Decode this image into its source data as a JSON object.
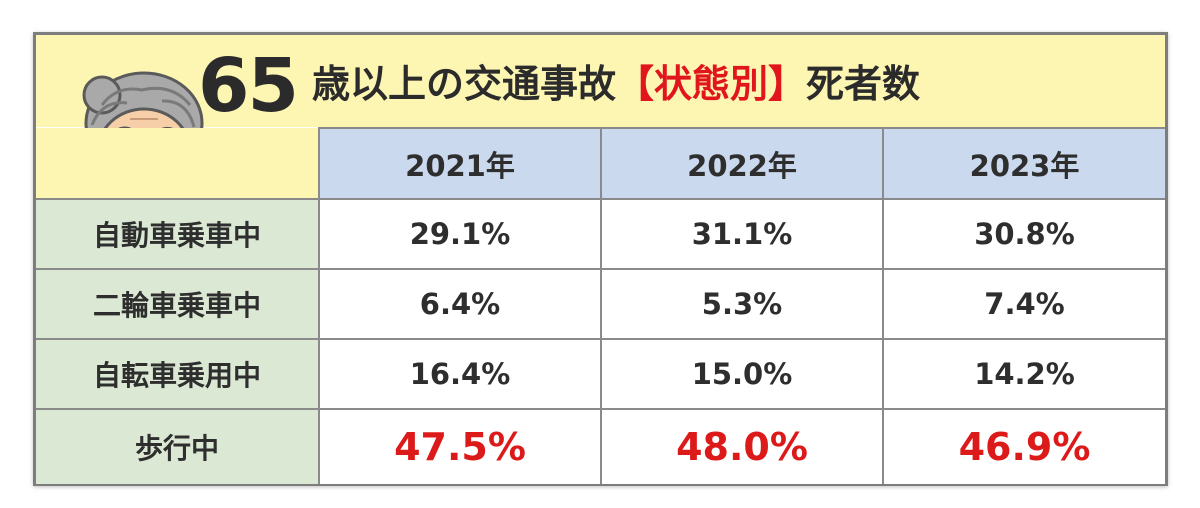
{
  "title": {
    "number": "65",
    "text_before": "歳以上の交通事故",
    "text_accent": "【状態別】",
    "text_after": "死者数"
  },
  "colors": {
    "title_band": "#fdf6b3",
    "year_header": "#cbd9ee",
    "row_label": "#dbe8d4",
    "highlight": "#dc1a1a"
  },
  "avatar_icon": "elderly-woman-icon",
  "chart_data": {
    "type": "table",
    "columns": [
      "2021年",
      "2022年",
      "2023年"
    ],
    "rows": [
      {
        "label": "自動車乗車中",
        "values": [
          "29.1%",
          "31.1%",
          "30.8%"
        ]
      },
      {
        "label": "二輪車乗車中",
        "values": [
          "6.4%",
          "5.3%",
          "7.4%"
        ]
      },
      {
        "label": "自転車乗用中",
        "values": [
          "16.4%",
          "15.0%",
          "14.2%"
        ]
      },
      {
        "label": "歩行中",
        "values": [
          "47.5%",
          "48.0%",
          "46.9%"
        ]
      }
    ]
  }
}
